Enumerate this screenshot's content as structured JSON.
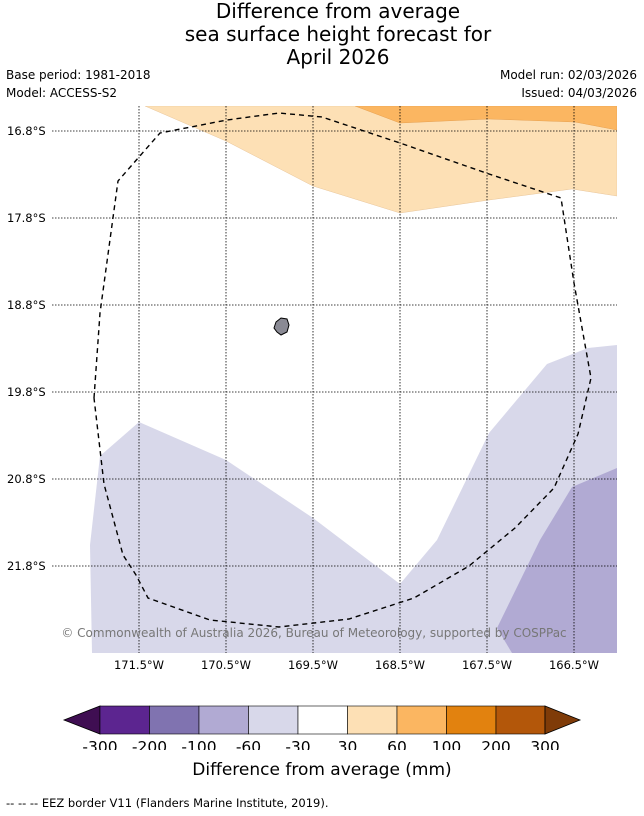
{
  "title_lines": [
    "Difference from average",
    "sea surface height forecast for",
    "April 2026"
  ],
  "base_period": "Base period: 1981-2018",
  "model": "Model: ACCESS-S2",
  "model_run": "Model run: 02/03/2026",
  "issued": "Issued: 04/03/2026",
  "lat_labels": [
    "16.8°S",
    "17.8°S",
    "18.8°S",
    "19.8°S",
    "20.8°S",
    "21.8°S"
  ],
  "lon_labels": [
    "171.5°W",
    "170.5°W",
    "169.5°W",
    "168.5°W",
    "167.5°W",
    "166.5°W"
  ],
  "copyright": "© Commonwealth of Australia 2026, Bureau of Meteorology, supported by COSPPac",
  "colorbar": {
    "tick_labels": [
      "-300",
      "-200",
      "-100",
      "-60",
      "-30",
      "30",
      "60",
      "100",
      "200",
      "300"
    ],
    "colors": [
      "#3f0e52",
      "#5c2590",
      "#8073b0",
      "#b1aad3",
      "#d8d8ea",
      "#ffffff",
      "#fde0b5",
      "#fbb661",
      "#e2820f",
      "#b3570a",
      "#7f3b08"
    ],
    "label": "Difference from average (mm)"
  },
  "footnote": "--  --  -- EEZ border V11 (Flanders Marine Institute, 2019)."
}
